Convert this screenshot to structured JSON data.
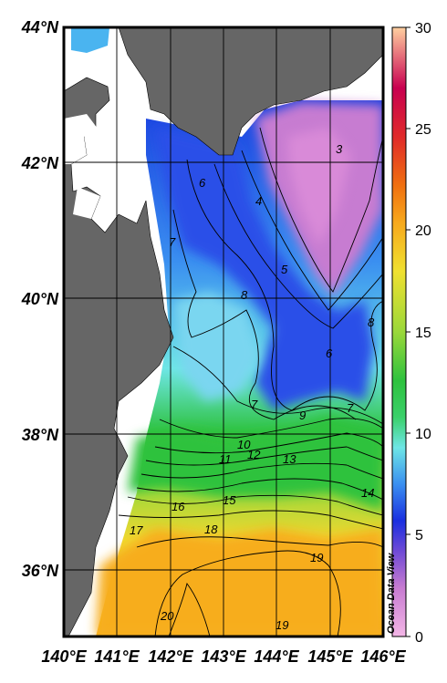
{
  "map": {
    "lat_labels": [
      "44°N",
      "42°N",
      "40°N",
      "38°N",
      "36°N"
    ],
    "lon_labels": [
      "140°E",
      "141°E",
      "142°E",
      "143°E",
      "144°E",
      "145°E",
      "146°E"
    ],
    "lat_range": [
      35,
      44
    ],
    "lon_range": [
      140,
      146
    ],
    "colors": {
      "land": "#666666",
      "grid": "#000000",
      "missing": "#ffffff"
    }
  },
  "colorbar": {
    "ticks": [
      "30",
      "25",
      "20",
      "15",
      "10",
      "5",
      "0"
    ],
    "range": [
      0,
      30
    ],
    "stops": [
      "#f3b6e6",
      "#c77bd1",
      "#6f4ad6",
      "#1a2fe0",
      "#3a8ff0",
      "#6ee6e6",
      "#2ec23e",
      "#9ad83a",
      "#f0e030",
      "#f7a81c",
      "#f07010",
      "#e02a2a",
      "#c80050",
      "#ffd0a0"
    ]
  },
  "contours": [
    {
      "label": "3"
    },
    {
      "label": "4"
    },
    {
      "label": "5"
    },
    {
      "label": "6"
    },
    {
      "label": "6"
    },
    {
      "label": "7"
    },
    {
      "label": "7"
    },
    {
      "label": "7"
    },
    {
      "label": "8"
    },
    {
      "label": "8"
    },
    {
      "label": "9"
    },
    {
      "label": "10"
    },
    {
      "label": "11"
    },
    {
      "label": "12"
    },
    {
      "label": "13"
    },
    {
      "label": "14"
    },
    {
      "label": "15"
    },
    {
      "label": "16"
    },
    {
      "label": "17"
    },
    {
      "label": "18"
    },
    {
      "label": "19"
    },
    {
      "label": "19"
    },
    {
      "label": "20"
    }
  ],
  "credit": "Ocean Data View"
}
